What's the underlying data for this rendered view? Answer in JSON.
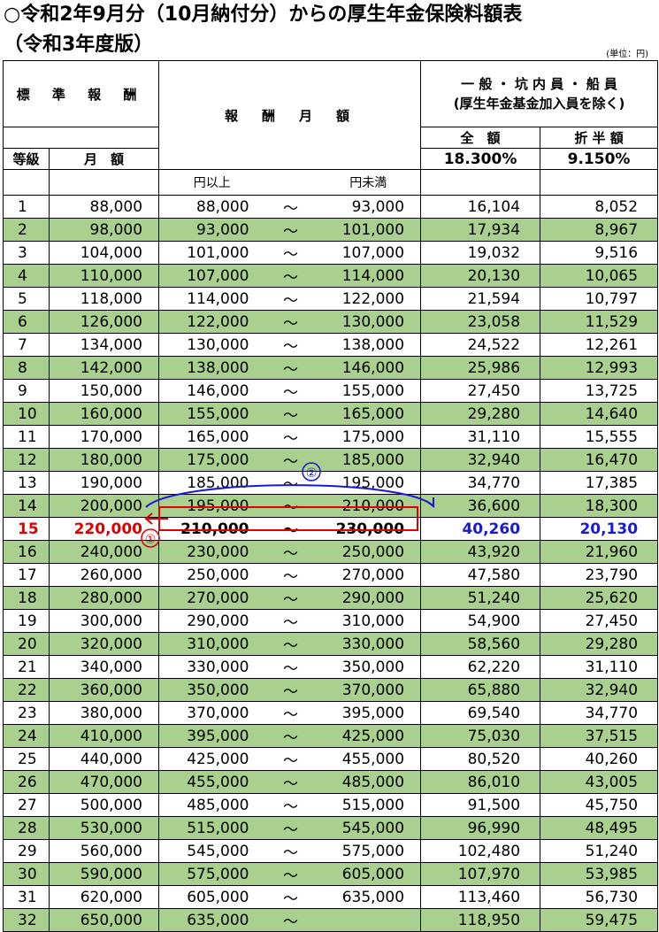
{
  "title": "○令和2年9月分（10月納付分）からの厚生年金保険料額表",
  "subtitle": "（令和3年度版）",
  "unit_note": "(単位：円)",
  "header": {
    "standard": "標 準 報 酬",
    "remuneration": "報　酬　月　額",
    "general_line1": "一 般 ・ 坑 内 員 ・ 船 員",
    "general_line2": "(厚生年金基金加入員を除く)",
    "full": "全　額",
    "half": "折 半 額",
    "grade": "等級",
    "monthly": "月　額",
    "full_rate": "18.300%",
    "half_rate": "9.150%",
    "from": "円以上",
    "to": "円未満"
  },
  "tilde": "～",
  "annotations": {
    "one": "①",
    "two": "②"
  },
  "rows": [
    [
      "1",
      "88,000",
      "88,000",
      "93,000",
      "16,104",
      "8,052"
    ],
    [
      "2",
      "98,000",
      "93,000",
      "101,000",
      "17,934",
      "8,967"
    ],
    [
      "3",
      "104,000",
      "101,000",
      "107,000",
      "19,032",
      "9,516"
    ],
    [
      "4",
      "110,000",
      "107,000",
      "114,000",
      "20,130",
      "10,065"
    ],
    [
      "5",
      "118,000",
      "114,000",
      "122,000",
      "21,594",
      "10,797"
    ],
    [
      "6",
      "126,000",
      "122,000",
      "130,000",
      "23,058",
      "11,529"
    ],
    [
      "7",
      "134,000",
      "130,000",
      "138,000",
      "24,522",
      "12,261"
    ],
    [
      "8",
      "142,000",
      "138,000",
      "146,000",
      "25,986",
      "12,993"
    ],
    [
      "9",
      "150,000",
      "146,000",
      "155,000",
      "27,450",
      "13,725"
    ],
    [
      "10",
      "160,000",
      "155,000",
      "165,000",
      "29,280",
      "14,640"
    ],
    [
      "11",
      "170,000",
      "165,000",
      "175,000",
      "31,110",
      "15,555"
    ],
    [
      "12",
      "180,000",
      "175,000",
      "185,000",
      "32,940",
      "16,470"
    ],
    [
      "13",
      "190,000",
      "185,000",
      "195,000",
      "34,770",
      "17,385"
    ],
    [
      "14",
      "200,000",
      "195,000",
      "210,000",
      "36,600",
      "18,300"
    ],
    [
      "15",
      "220,000",
      "210,000",
      "230,000",
      "40,260",
      "20,130"
    ],
    [
      "16",
      "240,000",
      "230,000",
      "250,000",
      "43,920",
      "21,960"
    ],
    [
      "17",
      "260,000",
      "250,000",
      "270,000",
      "47,580",
      "23,790"
    ],
    [
      "18",
      "280,000",
      "270,000",
      "290,000",
      "51,240",
      "25,620"
    ],
    [
      "19",
      "300,000",
      "290,000",
      "310,000",
      "54,900",
      "27,450"
    ],
    [
      "20",
      "320,000",
      "310,000",
      "330,000",
      "58,560",
      "29,280"
    ],
    [
      "21",
      "340,000",
      "330,000",
      "350,000",
      "62,220",
      "31,110"
    ],
    [
      "22",
      "360,000",
      "350,000",
      "370,000",
      "65,880",
      "32,940"
    ],
    [
      "23",
      "380,000",
      "370,000",
      "395,000",
      "69,540",
      "34,770"
    ],
    [
      "24",
      "410,000",
      "395,000",
      "425,000",
      "75,030",
      "37,515"
    ],
    [
      "25",
      "440,000",
      "425,000",
      "455,000",
      "80,520",
      "40,260"
    ],
    [
      "26",
      "470,000",
      "455,000",
      "485,000",
      "86,010",
      "43,005"
    ],
    [
      "27",
      "500,000",
      "485,000",
      "515,000",
      "91,500",
      "45,750"
    ],
    [
      "28",
      "530,000",
      "515,000",
      "545,000",
      "96,990",
      "48,495"
    ],
    [
      "29",
      "560,000",
      "545,000",
      "575,000",
      "102,480",
      "51,240"
    ],
    [
      "30",
      "590,000",
      "575,000",
      "605,000",
      "107,970",
      "53,985"
    ],
    [
      "31",
      "620,000",
      "605,000",
      "635,000",
      "113,460",
      "56,730"
    ],
    [
      "32",
      "650,000",
      "635,000",
      "",
      "118,950",
      "59,475"
    ]
  ],
  "highlight_grade": "15",
  "colors": {
    "stripe": "#a9d08e",
    "red": "#e00000",
    "blue": "#1a1ad6"
  }
}
